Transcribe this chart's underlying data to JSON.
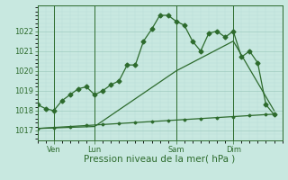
{
  "xlabel": "Pression niveau de la mer( hPa )",
  "bg_color": "#c8e8e0",
  "plot_bg_color": "#c8e8e0",
  "line_color": "#2d6b2d",
  "grid_major_color": "#a0ccc0",
  "grid_minor_color": "#b8ddd8",
  "axis_color": "#2d6b2d",
  "ylim": [
    1016.5,
    1023.3
  ],
  "xlim": [
    0,
    30
  ],
  "yticks": [
    1017,
    1018,
    1019,
    1020,
    1021,
    1022
  ],
  "xtick_positions": [
    2,
    7,
    17,
    24
  ],
  "xtick_labels": [
    "Ven",
    "Lun",
    "Sam",
    "Dim"
  ],
  "vlines": [
    2,
    7,
    17,
    24
  ],
  "series1_x": [
    0,
    1,
    2,
    3,
    4,
    5,
    6,
    7,
    8,
    9,
    10,
    11,
    12,
    13,
    14,
    15,
    16,
    17,
    18,
    19,
    20,
    21,
    22,
    23,
    24,
    25,
    26,
    27,
    28,
    29
  ],
  "series1_y": [
    1018.3,
    1018.1,
    1018.0,
    1018.5,
    1018.8,
    1019.1,
    1019.2,
    1018.8,
    1019.0,
    1019.3,
    1019.5,
    1020.3,
    1020.3,
    1021.5,
    1022.1,
    1022.8,
    1022.8,
    1022.5,
    1022.3,
    1021.5,
    1021.0,
    1021.9,
    1022.0,
    1021.7,
    1022.0,
    1020.7,
    1021.0,
    1020.4,
    1018.3,
    1017.8
  ],
  "series2_x": [
    0,
    2,
    4,
    6,
    8,
    10,
    12,
    14,
    16,
    18,
    20,
    22,
    24,
    26,
    28,
    29
  ],
  "series2_y": [
    1017.1,
    1017.15,
    1017.2,
    1017.25,
    1017.3,
    1017.35,
    1017.4,
    1017.45,
    1017.5,
    1017.55,
    1017.6,
    1017.65,
    1017.7,
    1017.75,
    1017.8,
    1017.82
  ],
  "series3_x": [
    0,
    7,
    17,
    24,
    29
  ],
  "series3_y": [
    1017.1,
    1017.2,
    1020.0,
    1021.5,
    1018.0
  ],
  "marker_size": 2.5,
  "marker_size_flat": 1.5,
  "line_width": 0.9,
  "font_size_ticks": 6,
  "font_size_xlabel": 7.5
}
